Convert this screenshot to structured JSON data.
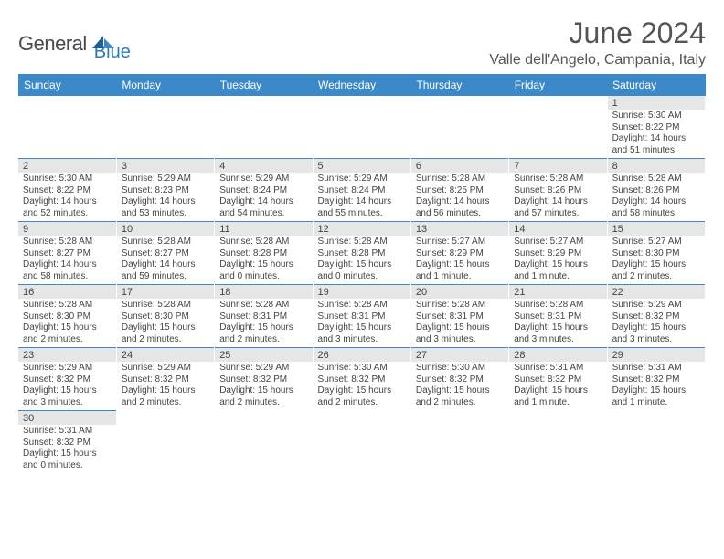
{
  "brand": {
    "name": "General",
    "suffix": "Blue"
  },
  "title": "June 2024",
  "location": "Valle dell'Angelo, Campania, Italy",
  "colors": {
    "header_bg": "#3b89c9",
    "header_fg": "#ffffff",
    "daynum_bg": "#e6e6e6",
    "border": "#3b89c9",
    "text": "#444444"
  },
  "day_headers": [
    "Sunday",
    "Monday",
    "Tuesday",
    "Wednesday",
    "Thursday",
    "Friday",
    "Saturday"
  ],
  "weeks": [
    [
      {
        "n": "",
        "lines": []
      },
      {
        "n": "",
        "lines": []
      },
      {
        "n": "",
        "lines": []
      },
      {
        "n": "",
        "lines": []
      },
      {
        "n": "",
        "lines": []
      },
      {
        "n": "",
        "lines": []
      },
      {
        "n": "1",
        "lines": [
          "Sunrise: 5:30 AM",
          "Sunset: 8:22 PM",
          "Daylight: 14 hours",
          "and 51 minutes."
        ]
      }
    ],
    [
      {
        "n": "2",
        "lines": [
          "Sunrise: 5:30 AM",
          "Sunset: 8:22 PM",
          "Daylight: 14 hours",
          "and 52 minutes."
        ]
      },
      {
        "n": "3",
        "lines": [
          "Sunrise: 5:29 AM",
          "Sunset: 8:23 PM",
          "Daylight: 14 hours",
          "and 53 minutes."
        ]
      },
      {
        "n": "4",
        "lines": [
          "Sunrise: 5:29 AM",
          "Sunset: 8:24 PM",
          "Daylight: 14 hours",
          "and 54 minutes."
        ]
      },
      {
        "n": "5",
        "lines": [
          "Sunrise: 5:29 AM",
          "Sunset: 8:24 PM",
          "Daylight: 14 hours",
          "and 55 minutes."
        ]
      },
      {
        "n": "6",
        "lines": [
          "Sunrise: 5:28 AM",
          "Sunset: 8:25 PM",
          "Daylight: 14 hours",
          "and 56 minutes."
        ]
      },
      {
        "n": "7",
        "lines": [
          "Sunrise: 5:28 AM",
          "Sunset: 8:26 PM",
          "Daylight: 14 hours",
          "and 57 minutes."
        ]
      },
      {
        "n": "8",
        "lines": [
          "Sunrise: 5:28 AM",
          "Sunset: 8:26 PM",
          "Daylight: 14 hours",
          "and 58 minutes."
        ]
      }
    ],
    [
      {
        "n": "9",
        "lines": [
          "Sunrise: 5:28 AM",
          "Sunset: 8:27 PM",
          "Daylight: 14 hours",
          "and 58 minutes."
        ]
      },
      {
        "n": "10",
        "lines": [
          "Sunrise: 5:28 AM",
          "Sunset: 8:27 PM",
          "Daylight: 14 hours",
          "and 59 minutes."
        ]
      },
      {
        "n": "11",
        "lines": [
          "Sunrise: 5:28 AM",
          "Sunset: 8:28 PM",
          "Daylight: 15 hours",
          "and 0 minutes."
        ]
      },
      {
        "n": "12",
        "lines": [
          "Sunrise: 5:28 AM",
          "Sunset: 8:28 PM",
          "Daylight: 15 hours",
          "and 0 minutes."
        ]
      },
      {
        "n": "13",
        "lines": [
          "Sunrise: 5:27 AM",
          "Sunset: 8:29 PM",
          "Daylight: 15 hours",
          "and 1 minute."
        ]
      },
      {
        "n": "14",
        "lines": [
          "Sunrise: 5:27 AM",
          "Sunset: 8:29 PM",
          "Daylight: 15 hours",
          "and 1 minute."
        ]
      },
      {
        "n": "15",
        "lines": [
          "Sunrise: 5:27 AM",
          "Sunset: 8:30 PM",
          "Daylight: 15 hours",
          "and 2 minutes."
        ]
      }
    ],
    [
      {
        "n": "16",
        "lines": [
          "Sunrise: 5:28 AM",
          "Sunset: 8:30 PM",
          "Daylight: 15 hours",
          "and 2 minutes."
        ]
      },
      {
        "n": "17",
        "lines": [
          "Sunrise: 5:28 AM",
          "Sunset: 8:30 PM",
          "Daylight: 15 hours",
          "and 2 minutes."
        ]
      },
      {
        "n": "18",
        "lines": [
          "Sunrise: 5:28 AM",
          "Sunset: 8:31 PM",
          "Daylight: 15 hours",
          "and 2 minutes."
        ]
      },
      {
        "n": "19",
        "lines": [
          "Sunrise: 5:28 AM",
          "Sunset: 8:31 PM",
          "Daylight: 15 hours",
          "and 3 minutes."
        ]
      },
      {
        "n": "20",
        "lines": [
          "Sunrise: 5:28 AM",
          "Sunset: 8:31 PM",
          "Daylight: 15 hours",
          "and 3 minutes."
        ]
      },
      {
        "n": "21",
        "lines": [
          "Sunrise: 5:28 AM",
          "Sunset: 8:31 PM",
          "Daylight: 15 hours",
          "and 3 minutes."
        ]
      },
      {
        "n": "22",
        "lines": [
          "Sunrise: 5:29 AM",
          "Sunset: 8:32 PM",
          "Daylight: 15 hours",
          "and 3 minutes."
        ]
      }
    ],
    [
      {
        "n": "23",
        "lines": [
          "Sunrise: 5:29 AM",
          "Sunset: 8:32 PM",
          "Daylight: 15 hours",
          "and 3 minutes."
        ]
      },
      {
        "n": "24",
        "lines": [
          "Sunrise: 5:29 AM",
          "Sunset: 8:32 PM",
          "Daylight: 15 hours",
          "and 2 minutes."
        ]
      },
      {
        "n": "25",
        "lines": [
          "Sunrise: 5:29 AM",
          "Sunset: 8:32 PM",
          "Daylight: 15 hours",
          "and 2 minutes."
        ]
      },
      {
        "n": "26",
        "lines": [
          "Sunrise: 5:30 AM",
          "Sunset: 8:32 PM",
          "Daylight: 15 hours",
          "and 2 minutes."
        ]
      },
      {
        "n": "27",
        "lines": [
          "Sunrise: 5:30 AM",
          "Sunset: 8:32 PM",
          "Daylight: 15 hours",
          "and 2 minutes."
        ]
      },
      {
        "n": "28",
        "lines": [
          "Sunrise: 5:31 AM",
          "Sunset: 8:32 PM",
          "Daylight: 15 hours",
          "and 1 minute."
        ]
      },
      {
        "n": "29",
        "lines": [
          "Sunrise: 5:31 AM",
          "Sunset: 8:32 PM",
          "Daylight: 15 hours",
          "and 1 minute."
        ]
      }
    ],
    [
      {
        "n": "30",
        "lines": [
          "Sunrise: 5:31 AM",
          "Sunset: 8:32 PM",
          "Daylight: 15 hours",
          "and 0 minutes."
        ]
      },
      {
        "n": "",
        "lines": []
      },
      {
        "n": "",
        "lines": []
      },
      {
        "n": "",
        "lines": []
      },
      {
        "n": "",
        "lines": []
      },
      {
        "n": "",
        "lines": []
      },
      {
        "n": "",
        "lines": []
      }
    ]
  ]
}
